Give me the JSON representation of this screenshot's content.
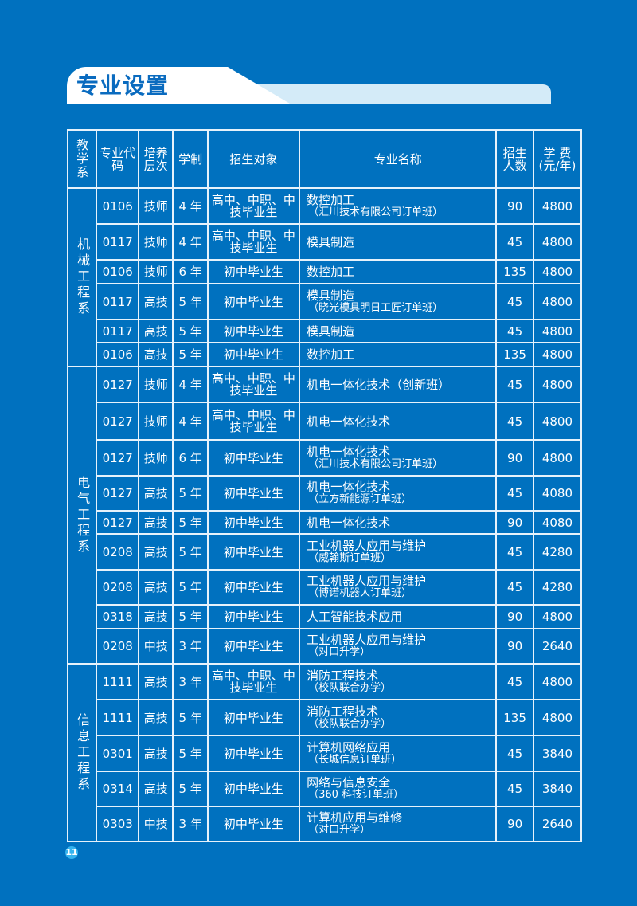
{
  "title": "专业设置",
  "page_number": "11",
  "headers": [
    "教学系",
    "专业代码",
    "培养层次",
    "学制",
    "招生对象",
    "专业名称",
    "招生人数",
    "学 费(元/年)"
  ],
  "departments": [
    {
      "name": "机械工程系",
      "rows": [
        [
          "0106",
          "技师",
          "4 年",
          "高中、中职、中技毕业生",
          "数控加工",
          "（汇川技术有限公司订单班）",
          "90",
          "4800"
        ],
        [
          "0117",
          "技师",
          "4 年",
          "高中、中职、中技毕业生",
          "模具制造",
          "",
          "45",
          "4800"
        ],
        [
          "0106",
          "技师",
          "6 年",
          "初中毕业生",
          "数控加工",
          "",
          "135",
          "4800"
        ],
        [
          "0117",
          "高技",
          "5 年",
          "初中毕业生",
          "模具制造",
          "（晓光模具明日工匠订单班）",
          "45",
          "4800"
        ],
        [
          "0117",
          "高技",
          "5 年",
          "初中毕业生",
          "模具制造",
          "",
          "45",
          "4800"
        ],
        [
          "0106",
          "高技",
          "5 年",
          "初中毕业生",
          "数控加工",
          "",
          "135",
          "4800"
        ]
      ]
    },
    {
      "name": "电气工程系",
      "rows": [
        [
          "0127",
          "技师",
          "4 年",
          "高中、中职、中技毕业生",
          "机电一体化技术（创新班）",
          "",
          "45",
          "4800"
        ],
        [
          "0127",
          "技师",
          "4 年",
          "高中、中职、中技毕业生",
          "机电一体化技术",
          "",
          "45",
          "4800"
        ],
        [
          "0127",
          "技师",
          "6 年",
          "初中毕业生",
          "机电一体化技术",
          "（汇川技术有限公司订单班）",
          "90",
          "4800"
        ],
        [
          "0127",
          "高技",
          "5 年",
          "初中毕业生",
          "机电一体化技术",
          "（立方新能源订单班）",
          "45",
          "4080"
        ],
        [
          "0127",
          "高技",
          "5 年",
          "初中毕业生",
          "机电一体化技术",
          "",
          "90",
          "4080"
        ],
        [
          "0208",
          "高技",
          "5 年",
          "初中毕业生",
          "工业机器人应用与维护",
          "（威翰斯订单班）",
          "45",
          "4280"
        ],
        [
          "0208",
          "高技",
          "5 年",
          "初中毕业生",
          "工业机器人应用与维护",
          "（博诺机器人订单班）",
          "45",
          "4280"
        ],
        [
          "0318",
          "高技",
          "5 年",
          "初中毕业生",
          "人工智能技术应用",
          "",
          "90",
          "4800"
        ],
        [
          "0208",
          "中技",
          "3 年",
          "初中毕业生",
          "工业机器人应用与维护",
          "（对口升学）",
          "90",
          "2640"
        ]
      ]
    },
    {
      "name": "信息工程系",
      "rows": [
        [
          "1111",
          "高技",
          "3 年",
          "高中、中职、中技毕业生",
          "消防工程技术",
          "（校队联合办学）",
          "45",
          "4800"
        ],
        [
          "1111",
          "高技",
          "5 年",
          "初中毕业生",
          "消防工程技术",
          "（校队联合办学）",
          "135",
          "4800"
        ],
        [
          "0301",
          "高技",
          "5 年",
          "初中毕业生",
          "计算机网络应用",
          "（长城信息订单班）",
          "45",
          "3840"
        ],
        [
          "0314",
          "高技",
          "5 年",
          "初中毕业生",
          "网络与信息安全",
          "（360 科技订单班）",
          "45",
          "3840"
        ],
        [
          "0303",
          "中技",
          "3 年",
          "初中毕业生",
          "计算机应用与维修",
          "（对口升学）",
          "90",
          "2640"
        ]
      ]
    }
  ]
}
